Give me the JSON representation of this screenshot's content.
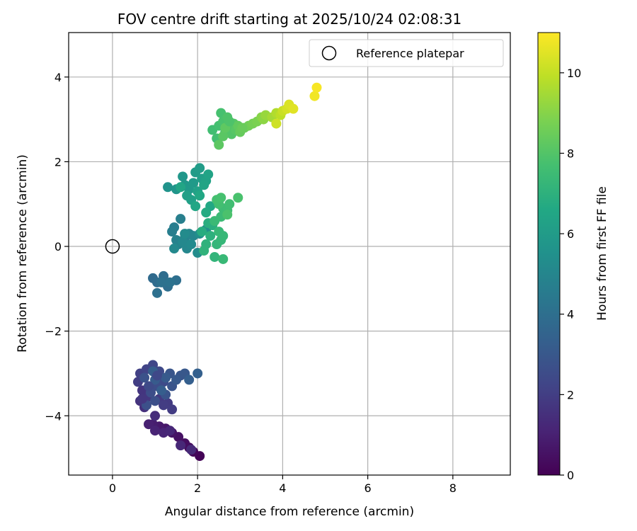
{
  "chart_data": {
    "type": "scatter",
    "title": "FOV centre drift starting at 2025/10/24 02:08:31",
    "xlabel": "Angular distance from reference (arcmin)",
    "ylabel": "Rotation from reference (arcmin)",
    "xlim": [
      -1.03,
      9.35
    ],
    "ylim": [
      -5.4,
      5.05
    ],
    "xticks": [
      0,
      2,
      4,
      6,
      8
    ],
    "yticks": [
      -4,
      -2,
      0,
      2,
      4
    ],
    "xtick_labels": [
      "0",
      "2",
      "4",
      "6",
      "8"
    ],
    "ytick_labels": [
      "−4",
      "−2",
      "0",
      "2",
      "4"
    ],
    "grid": true,
    "legend": {
      "placement": "upper-right",
      "entries": [
        {
          "label": "Reference platepar",
          "marker": "open-circle"
        }
      ]
    },
    "reference_point": {
      "x": 0,
      "y": 0
    },
    "colorbar": {
      "label": "Hours from first FF file",
      "range": [
        0,
        11
      ],
      "ticks": [
        0,
        2,
        4,
        6,
        8,
        10
      ],
      "tick_labels": [
        "0",
        "2",
        "4",
        "6",
        "8",
        "10"
      ],
      "colormap": "viridis"
    },
    "marker_color_key": "hours",
    "points": [
      {
        "x": 2.05,
        "y": -4.95,
        "hours": 0.1
      },
      {
        "x": 1.9,
        "y": -4.85,
        "hours": 0.2
      },
      {
        "x": 1.8,
        "y": -4.75,
        "hours": 0.3
      },
      {
        "x": 1.7,
        "y": -4.65,
        "hours": 0.4
      },
      {
        "x": 1.55,
        "y": -4.5,
        "hours": 0.5
      },
      {
        "x": 1.4,
        "y": -4.4,
        "hours": 0.6
      },
      {
        "x": 1.25,
        "y": -4.3,
        "hours": 0.7
      },
      {
        "x": 1.1,
        "y": -4.25,
        "hours": 0.8
      },
      {
        "x": 0.95,
        "y": -4.2,
        "hours": 0.9
      },
      {
        "x": 0.85,
        "y": -4.2,
        "hours": 1.0
      },
      {
        "x": 1.0,
        "y": -4.35,
        "hours": 1.1
      },
      {
        "x": 1.2,
        "y": -4.4,
        "hours": 1.15
      },
      {
        "x": 1.35,
        "y": -4.35,
        "hours": 1.2
      },
      {
        "x": 1.6,
        "y": -4.7,
        "hours": 1.25
      },
      {
        "x": 1.85,
        "y": -4.8,
        "hours": 1.3
      },
      {
        "x": 1.0,
        "y": -4.0,
        "hours": 1.4
      },
      {
        "x": 0.75,
        "y": -3.8,
        "hours": 1.5
      },
      {
        "x": 0.65,
        "y": -3.65,
        "hours": 1.6
      },
      {
        "x": 0.7,
        "y": -3.4,
        "hours": 1.7
      },
      {
        "x": 0.85,
        "y": -3.55,
        "hours": 1.8
      },
      {
        "x": 1.1,
        "y": -3.6,
        "hours": 1.85
      },
      {
        "x": 1.3,
        "y": -3.7,
        "hours": 1.9
      },
      {
        "x": 1.4,
        "y": -3.85,
        "hours": 1.95
      },
      {
        "x": 0.6,
        "y": -3.2,
        "hours": 2.0
      },
      {
        "x": 0.65,
        "y": -3.0,
        "hours": 2.1
      },
      {
        "x": 0.8,
        "y": -2.9,
        "hours": 2.2
      },
      {
        "x": 0.95,
        "y": -2.8,
        "hours": 2.3
      },
      {
        "x": 1.1,
        "y": -2.95,
        "hours": 2.4
      },
      {
        "x": 1.2,
        "y": -3.2,
        "hours": 2.5
      },
      {
        "x": 1.05,
        "y": -3.3,
        "hours": 2.55
      },
      {
        "x": 0.9,
        "y": -3.45,
        "hours": 2.6
      },
      {
        "x": 1.0,
        "y": -3.65,
        "hours": 2.65
      },
      {
        "x": 0.8,
        "y": -3.75,
        "hours": 2.7
      },
      {
        "x": 0.75,
        "y": -3.1,
        "hours": 2.75
      },
      {
        "x": 1.25,
        "y": -3.5,
        "hours": 2.8
      },
      {
        "x": 1.4,
        "y": -3.3,
        "hours": 2.85
      },
      {
        "x": 1.35,
        "y": -3.0,
        "hours": 2.9
      },
      {
        "x": 1.6,
        "y": -3.05,
        "hours": 2.95
      },
      {
        "x": 1.7,
        "y": -3.0,
        "hours": 3.0
      },
      {
        "x": 1.5,
        "y": -3.15,
        "hours": 3.05
      },
      {
        "x": 1.25,
        "y": -3.1,
        "hours": 3.1
      },
      {
        "x": 1.0,
        "y": -3.15,
        "hours": 3.15
      },
      {
        "x": 0.95,
        "y": -2.95,
        "hours": 3.2
      },
      {
        "x": 1.15,
        "y": -3.4,
        "hours": 3.25
      },
      {
        "x": 1.8,
        "y": -3.15,
        "hours": 3.3
      },
      {
        "x": 2.0,
        "y": -3.0,
        "hours": 3.35
      },
      {
        "x": 0.85,
        "y": -3.3,
        "hours": 2.45
      },
      {
        "x": 1.05,
        "y": -3.05,
        "hours": 2.35
      },
      {
        "x": 0.7,
        "y": -3.6,
        "hours": 1.75
      },
      {
        "x": 1.2,
        "y": -3.75,
        "hours": 1.95
      },
      {
        "x": 0.95,
        "y": -0.75,
        "hours": 3.8
      },
      {
        "x": 1.05,
        "y": -0.85,
        "hours": 3.85
      },
      {
        "x": 1.2,
        "y": -0.7,
        "hours": 3.9
      },
      {
        "x": 1.3,
        "y": -0.95,
        "hours": 3.95
      },
      {
        "x": 1.5,
        "y": -0.8,
        "hours": 4.0
      },
      {
        "x": 1.05,
        "y": -1.1,
        "hours": 4.05
      },
      {
        "x": 1.15,
        "y": -0.85,
        "hours": 4.1
      },
      {
        "x": 1.35,
        "y": -0.85,
        "hours": 4.15
      },
      {
        "x": 1.45,
        "y": 0.45,
        "hours": 4.6
      },
      {
        "x": 1.4,
        "y": 0.35,
        "hours": 4.65
      },
      {
        "x": 1.6,
        "y": 0.65,
        "hours": 4.7
      },
      {
        "x": 1.5,
        "y": 0.15,
        "hours": 4.8
      },
      {
        "x": 1.55,
        "y": 0.05,
        "hours": 4.85
      },
      {
        "x": 1.7,
        "y": 0.2,
        "hours": 4.9
      },
      {
        "x": 1.8,
        "y": 0.3,
        "hours": 4.95
      },
      {
        "x": 1.9,
        "y": 0.25,
        "hours": 5.0
      },
      {
        "x": 1.75,
        "y": -0.05,
        "hours": 5.05
      },
      {
        "x": 1.65,
        "y": 0.1,
        "hours": 5.1
      },
      {
        "x": 1.45,
        "y": -0.05,
        "hours": 5.15
      },
      {
        "x": 1.85,
        "y": 0.05,
        "hours": 5.2
      },
      {
        "x": 2.0,
        "y": -0.15,
        "hours": 5.3
      },
      {
        "x": 2.05,
        "y": 0.3,
        "hours": 5.35
      },
      {
        "x": 2.2,
        "y": 0.4,
        "hours": 5.4
      },
      {
        "x": 1.7,
        "y": 0.3,
        "hours": 5.25
      },
      {
        "x": 1.3,
        "y": 1.4,
        "hours": 5.6
      },
      {
        "x": 1.5,
        "y": 1.35,
        "hours": 5.7
      },
      {
        "x": 1.65,
        "y": 1.65,
        "hours": 5.8
      },
      {
        "x": 1.7,
        "y": 1.45,
        "hours": 5.85
      },
      {
        "x": 1.8,
        "y": 1.35,
        "hours": 5.9
      },
      {
        "x": 1.9,
        "y": 1.5,
        "hours": 5.95
      },
      {
        "x": 1.95,
        "y": 1.75,
        "hours": 6.0
      },
      {
        "x": 2.05,
        "y": 1.85,
        "hours": 6.05
      },
      {
        "x": 2.1,
        "y": 1.6,
        "hours": 6.1
      },
      {
        "x": 1.75,
        "y": 1.2,
        "hours": 6.15
      },
      {
        "x": 1.85,
        "y": 1.1,
        "hours": 6.2
      },
      {
        "x": 2.0,
        "y": 1.3,
        "hours": 6.25
      },
      {
        "x": 2.2,
        "y": 1.55,
        "hours": 6.3
      },
      {
        "x": 2.25,
        "y": 1.7,
        "hours": 6.35
      },
      {
        "x": 2.15,
        "y": 1.45,
        "hours": 6.4
      },
      {
        "x": 1.6,
        "y": 1.4,
        "hours": 6.45
      },
      {
        "x": 1.95,
        "y": 0.95,
        "hours": 6.5
      },
      {
        "x": 2.05,
        "y": 1.2,
        "hours": 6.55
      },
      {
        "x": 2.3,
        "y": 0.95,
        "hours": 6.6
      },
      {
        "x": 2.2,
        "y": 0.8,
        "hours": 6.7
      },
      {
        "x": 2.1,
        "y": 0.35,
        "hours": 6.8
      },
      {
        "x": 2.25,
        "y": 0.55,
        "hours": 6.85
      },
      {
        "x": 2.35,
        "y": 0.5,
        "hours": 6.9
      },
      {
        "x": 2.3,
        "y": 0.25,
        "hours": 7.0
      },
      {
        "x": 2.2,
        "y": 0.05,
        "hours": 7.05
      },
      {
        "x": 2.15,
        "y": -0.1,
        "hours": 7.1
      },
      {
        "x": 2.4,
        "y": -0.25,
        "hours": 7.15
      },
      {
        "x": 2.45,
        "y": 0.05,
        "hours": 7.2
      },
      {
        "x": 2.55,
        "y": 0.15,
        "hours": 7.25
      },
      {
        "x": 2.6,
        "y": 0.25,
        "hours": 7.3
      },
      {
        "x": 2.6,
        "y": -0.3,
        "hours": 7.35
      },
      {
        "x": 2.4,
        "y": 0.6,
        "hours": 7.4
      },
      {
        "x": 2.55,
        "y": 0.7,
        "hours": 7.45
      },
      {
        "x": 2.6,
        "y": 0.9,
        "hours": 7.5
      },
      {
        "x": 2.7,
        "y": 0.85,
        "hours": 7.55
      },
      {
        "x": 2.75,
        "y": 1.0,
        "hours": 7.6
      },
      {
        "x": 2.5,
        "y": 1.0,
        "hours": 7.65
      },
      {
        "x": 2.45,
        "y": 1.1,
        "hours": 7.7
      },
      {
        "x": 2.55,
        "y": 1.15,
        "hours": 7.75
      },
      {
        "x": 2.95,
        "y": 1.15,
        "hours": 7.8
      },
      {
        "x": 2.7,
        "y": 0.75,
        "hours": 7.85
      },
      {
        "x": 2.5,
        "y": 0.35,
        "hours": 7.3
      },
      {
        "x": 2.35,
        "y": 2.75,
        "hours": 7.6
      },
      {
        "x": 2.45,
        "y": 2.55,
        "hours": 7.65
      },
      {
        "x": 2.5,
        "y": 2.85,
        "hours": 7.7
      },
      {
        "x": 2.55,
        "y": 3.15,
        "hours": 7.75
      },
      {
        "x": 2.6,
        "y": 2.95,
        "hours": 7.8
      },
      {
        "x": 2.65,
        "y": 2.7,
        "hours": 7.85
      },
      {
        "x": 2.7,
        "y": 3.05,
        "hours": 7.9
      },
      {
        "x": 2.75,
        "y": 2.85,
        "hours": 7.95
      },
      {
        "x": 2.8,
        "y": 2.65,
        "hours": 8.0
      },
      {
        "x": 2.85,
        "y": 2.9,
        "hours": 8.05
      },
      {
        "x": 2.9,
        "y": 2.75,
        "hours": 8.1
      },
      {
        "x": 2.6,
        "y": 2.6,
        "hours": 8.15
      },
      {
        "x": 2.5,
        "y": 2.4,
        "hours": 8.2
      },
      {
        "x": 2.65,
        "y": 2.8,
        "hours": 8.25
      },
      {
        "x": 2.95,
        "y": 2.85,
        "hours": 8.3
      },
      {
        "x": 3.0,
        "y": 2.7,
        "hours": 8.4
      },
      {
        "x": 3.1,
        "y": 2.8,
        "hours": 8.5
      },
      {
        "x": 3.2,
        "y": 2.85,
        "hours": 8.6
      },
      {
        "x": 3.3,
        "y": 2.9,
        "hours": 8.7
      },
      {
        "x": 3.4,
        "y": 2.95,
        "hours": 8.8
      },
      {
        "x": 3.5,
        "y": 3.05,
        "hours": 9.0
      },
      {
        "x": 3.55,
        "y": 3.0,
        "hours": 9.1
      },
      {
        "x": 3.6,
        "y": 3.1,
        "hours": 9.3
      },
      {
        "x": 3.75,
        "y": 3.05,
        "hours": 9.5
      },
      {
        "x": 3.85,
        "y": 3.15,
        "hours": 9.7
      },
      {
        "x": 3.95,
        "y": 3.1,
        "hours": 9.9
      },
      {
        "x": 4.0,
        "y": 3.2,
        "hours": 10.1
      },
      {
        "x": 3.85,
        "y": 2.9,
        "hours": 10.2
      },
      {
        "x": 4.1,
        "y": 3.25,
        "hours": 10.3
      },
      {
        "x": 4.15,
        "y": 3.35,
        "hours": 10.4
      },
      {
        "x": 4.25,
        "y": 3.25,
        "hours": 10.5
      },
      {
        "x": 4.75,
        "y": 3.55,
        "hours": 10.8
      },
      {
        "x": 4.8,
        "y": 3.75,
        "hours": 10.9
      },
      {
        "x": 3.05,
        "y": 2.8,
        "hours": 8.45
      },
      {
        "x": 2.75,
        "y": 2.95,
        "hours": 7.9
      }
    ]
  }
}
